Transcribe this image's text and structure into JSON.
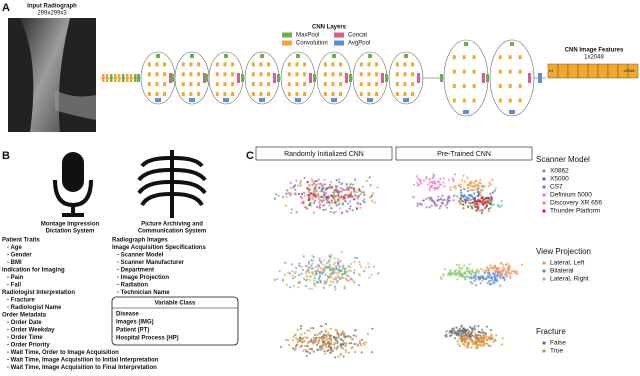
{
  "panel_a": {
    "label": "A",
    "input_title": "Input Radiograph",
    "input_size": "299x299x3",
    "legend_title": "CNN Layers",
    "legend": [
      {
        "name": "MaxPool",
        "color": "#6ab04c"
      },
      {
        "name": "Concat",
        "color": "#e05a8a"
      },
      {
        "name": "Convolution",
        "color": "#f0a830"
      },
      {
        "name": "AvgPool",
        "color": "#5b8fd6"
      }
    ],
    "features_title": "CNN Image Features",
    "features_size": "1x2048",
    "features_first": "x1",
    "features_last": "x2048"
  },
  "panel_b": {
    "label": "B",
    "left_system": [
      "Montage Impression",
      "Dictation System"
    ],
    "right_system": [
      "Picture Archiving and",
      "Communication System"
    ],
    "left_sections": [
      {
        "heading": "Patient Traits",
        "items": [
          {
            "text": "- Age",
            "color": "#e0307a"
          },
          {
            "text": "- Gender",
            "color": "#e0307a"
          },
          {
            "text": "- BMI",
            "color": "#e0307a"
          }
        ]
      },
      {
        "heading": "Indication for Imaging",
        "items": [
          {
            "text": "- Pain",
            "color": "#e0307a"
          },
          {
            "text": "- Fall",
            "color": "#e0307a"
          }
        ]
      },
      {
        "heading": "Radiologist Interpretation",
        "items": [
          {
            "text": "- Fracture",
            "color": "#d9822b"
          },
          {
            "text": "- Radiologist Name",
            "color": "#2a9d6f"
          }
        ]
      },
      {
        "heading": "Order Metadata",
        "items": [
          {
            "text": "- Order Date",
            "color": "#2a9d6f"
          },
          {
            "text": "- Order Weekday",
            "color": "#2a9d6f"
          },
          {
            "text": "- Order Time",
            "color": "#2a9d6f"
          },
          {
            "text": "- Order Priority",
            "color": "#2a9d6f"
          },
          {
            "text": "- Wait Time, Order to Image Acquisition",
            "color": "#2a9d6f"
          },
          {
            "text": "- Wait Time, Image Acquisition to Initial Interpretation",
            "color": "#2a9d6f"
          },
          {
            "text": "- Wait Time, Image Acquisition to Final Interpretation",
            "color": "#2a9d6f"
          }
        ]
      }
    ],
    "right_sections": [
      {
        "heading": "Radiograph Images",
        "color": "#e8a020",
        "items": []
      },
      {
        "heading": "Image Acquisition Specifications",
        "items": [
          {
            "text": "- Scanner Model",
            "color": "#2a9d6f"
          },
          {
            "text": "- Scanner Manufacturer",
            "color": "#2a9d6f"
          },
          {
            "text": "- Department",
            "color": "#2a9d6f"
          },
          {
            "text": "- Image Projection",
            "color": "#2a9d6f"
          },
          {
            "text": "- Radiation",
            "color": "#2a9d6f"
          },
          {
            "text": "- Technician Name",
            "color": "#2a9d6f"
          }
        ]
      }
    ],
    "variable_class": {
      "title": "Variable Class",
      "items": [
        {
          "text": "Disease",
          "color": "#c8702a"
        },
        {
          "text": "Images (IMG)",
          "color": "#e8a020"
        },
        {
          "text": "Patient (PT)",
          "color": "#e0307a"
        },
        {
          "text": "Hospital Process (HP)",
          "color": "#2a9d6f"
        }
      ]
    }
  },
  "panel_c": {
    "label": "C",
    "columns": [
      "Randomly Initialized CNN",
      "Pre-Trained CNN"
    ],
    "legends": [
      {
        "title": "Scanner Model",
        "items": [
          {
            "name": "X0862",
            "color": "#56b870"
          },
          {
            "name": "X5000",
            "color": "#3b6fc4"
          },
          {
            "name": "CS7",
            "color": "#8c6bb1"
          },
          {
            "name": "Definium 5000",
            "color": "#e377c2"
          },
          {
            "name": "Discovery XR 656",
            "color": "#f28e2b"
          },
          {
            "name": "Thunder Platform",
            "color": "#e31a1c"
          }
        ]
      },
      {
        "title": "View Projection",
        "items": [
          {
            "name": "Lateral, Left",
            "color": "#f28e5c"
          },
          {
            "name": "Bilateral",
            "color": "#5b8fd6"
          },
          {
            "name": "Lateral, Right",
            "color": "#8fc96b"
          }
        ]
      },
      {
        "title": "Fracture",
        "items": [
          {
            "name": "False",
            "color": "#6b6b6b"
          },
          {
            "name": "True",
            "color": "#e08a2c"
          }
        ]
      }
    ]
  }
}
